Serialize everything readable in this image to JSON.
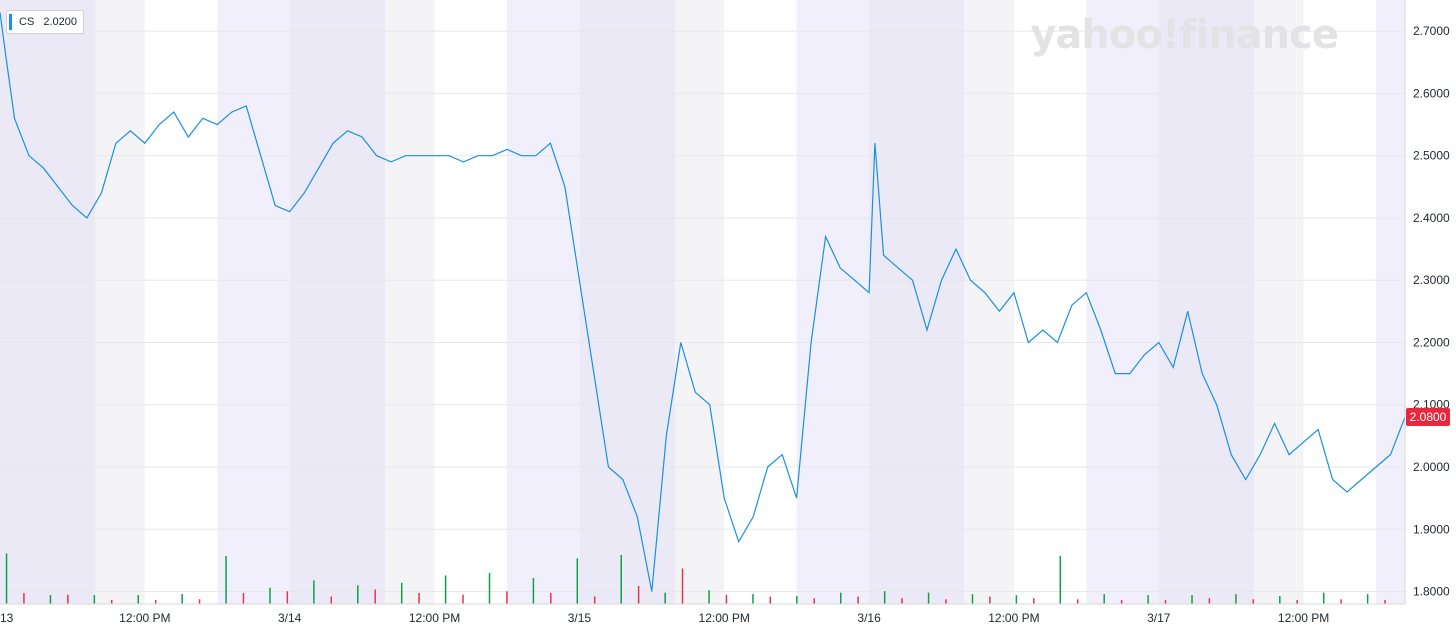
{
  "brand": {
    "watermark": "yahoo!finance"
  },
  "legend": {
    "symbol": "CS",
    "value": "2.0200",
    "color": "#1a90e0"
  },
  "last_price": {
    "label": "2.0800",
    "value": 2.08,
    "color": "#e7283c"
  },
  "chart_data": {
    "type": "line",
    "title": "",
    "xlabel": "",
    "ylabel": "",
    "ylim": [
      1.78,
      2.75
    ],
    "y_ticks": [
      "2.7000",
      "2.6000",
      "2.5000",
      "2.4000",
      "2.3000",
      "2.2000",
      "2.1000",
      "2.0000",
      "1.9000",
      "1.8000"
    ],
    "y_tick_values": [
      2.7,
      2.6,
      2.5,
      2.4,
      2.3,
      2.2,
      2.1,
      2.0,
      1.9,
      1.8
    ],
    "x_tick_labels": [
      "13",
      "12:00 PM",
      "3/14",
      "12:00 PM",
      "3/15",
      "12:00 PM",
      "3/16",
      "12:00 PM",
      "3/17",
      "12:00 PM"
    ],
    "x_tick_positions": [
      0,
      0.5,
      1,
      1.5,
      2,
      2.5,
      3,
      3.5,
      4,
      4.5
    ],
    "grid": true,
    "series": [
      {
        "name": "",
        "color": "#1a90e0",
        "x": [
          0,
          0.02,
          0.05,
          0.1,
          0.15,
          0.2,
          0.25,
          0.3,
          0.35,
          0.4,
          0.45,
          0.5,
          0.55,
          0.6,
          0.65,
          0.7,
          0.75,
          0.8,
          0.85,
          0.9,
          0.95,
          1.0,
          1.05,
          1.1,
          1.15,
          1.2,
          1.25,
          1.3,
          1.35,
          1.4,
          1.45,
          1.5,
          1.55,
          1.6,
          1.65,
          1.7,
          1.75,
          1.8,
          1.85,
          1.9,
          1.95,
          2.0,
          2.05,
          2.1,
          2.15,
          2.2,
          2.25,
          2.3,
          2.35,
          2.4,
          2.45,
          2.5,
          2.55,
          2.6,
          2.65,
          2.7,
          2.75,
          2.8,
          2.85,
          2.9,
          2.95,
          3.0,
          3.02,
          3.05,
          3.1,
          3.15,
          3.2,
          3.25,
          3.3,
          3.35,
          3.4,
          3.45,
          3.5,
          3.55,
          3.6,
          3.65,
          3.7,
          3.75,
          3.8,
          3.85,
          3.9,
          3.95,
          4.0,
          4.05,
          4.1,
          4.15,
          4.2,
          4.25,
          4.3,
          4.35,
          4.4,
          4.45,
          4.5,
          4.55,
          4.6,
          4.65,
          4.7,
          4.75,
          4.8,
          4.85
        ],
        "values": [
          2.73,
          2.66,
          2.56,
          2.5,
          2.48,
          2.45,
          2.42,
          2.4,
          2.44,
          2.52,
          2.54,
          2.52,
          2.55,
          2.57,
          2.53,
          2.56,
          2.55,
          2.57,
          2.58,
          2.5,
          2.42,
          2.41,
          2.44,
          2.48,
          2.52,
          2.54,
          2.53,
          2.5,
          2.49,
          2.5,
          2.5,
          2.5,
          2.5,
          2.49,
          2.5,
          2.5,
          2.51,
          2.5,
          2.5,
          2.52,
          2.45,
          2.3,
          2.15,
          2.0,
          1.98,
          1.92,
          1.8,
          2.05,
          2.2,
          2.12,
          2.1,
          1.95,
          1.88,
          1.92,
          2.0,
          2.02,
          1.95,
          2.2,
          2.37,
          2.32,
          2.3,
          2.28,
          2.52,
          2.34,
          2.32,
          2.3,
          2.22,
          2.3,
          2.35,
          2.3,
          2.28,
          2.25,
          2.28,
          2.2,
          2.22,
          2.2,
          2.26,
          2.28,
          2.22,
          2.15,
          2.15,
          2.18,
          2.2,
          2.16,
          2.25,
          2.15,
          2.1,
          2.02,
          1.98,
          2.02,
          2.07,
          2.02,
          2.04,
          2.06,
          1.98,
          1.96,
          1.98,
          2.0,
          2.02,
          2.08
        ]
      }
    ],
    "volume_green": [
      0.95,
      0.1,
      0.1,
      0.1,
      0.12,
      0.9,
      0.25,
      0.4,
      0.3,
      0.35,
      0.5,
      0.55,
      0.45,
      0.85,
      0.92,
      0.15,
      0.2,
      0.12,
      0.08,
      0.15,
      0.18,
      0.15,
      0.12,
      0.1,
      0.9,
      0.12,
      0.1,
      0.1,
      0.12,
      0.08,
      0.15,
      0.12
    ],
    "volume_red": [
      0.3,
      0.25,
      0.1,
      0.1,
      0.12,
      0.3,
      0.35,
      0.2,
      0.4,
      0.3,
      0.25,
      0.35,
      0.3,
      0.2,
      0.5,
      1.0,
      0.25,
      0.2,
      0.15,
      0.2,
      0.15,
      0.12,
      0.2,
      0.15,
      0.12,
      0.1,
      0.1,
      0.15,
      0.12,
      0.1,
      0.12,
      0.1
    ]
  }
}
